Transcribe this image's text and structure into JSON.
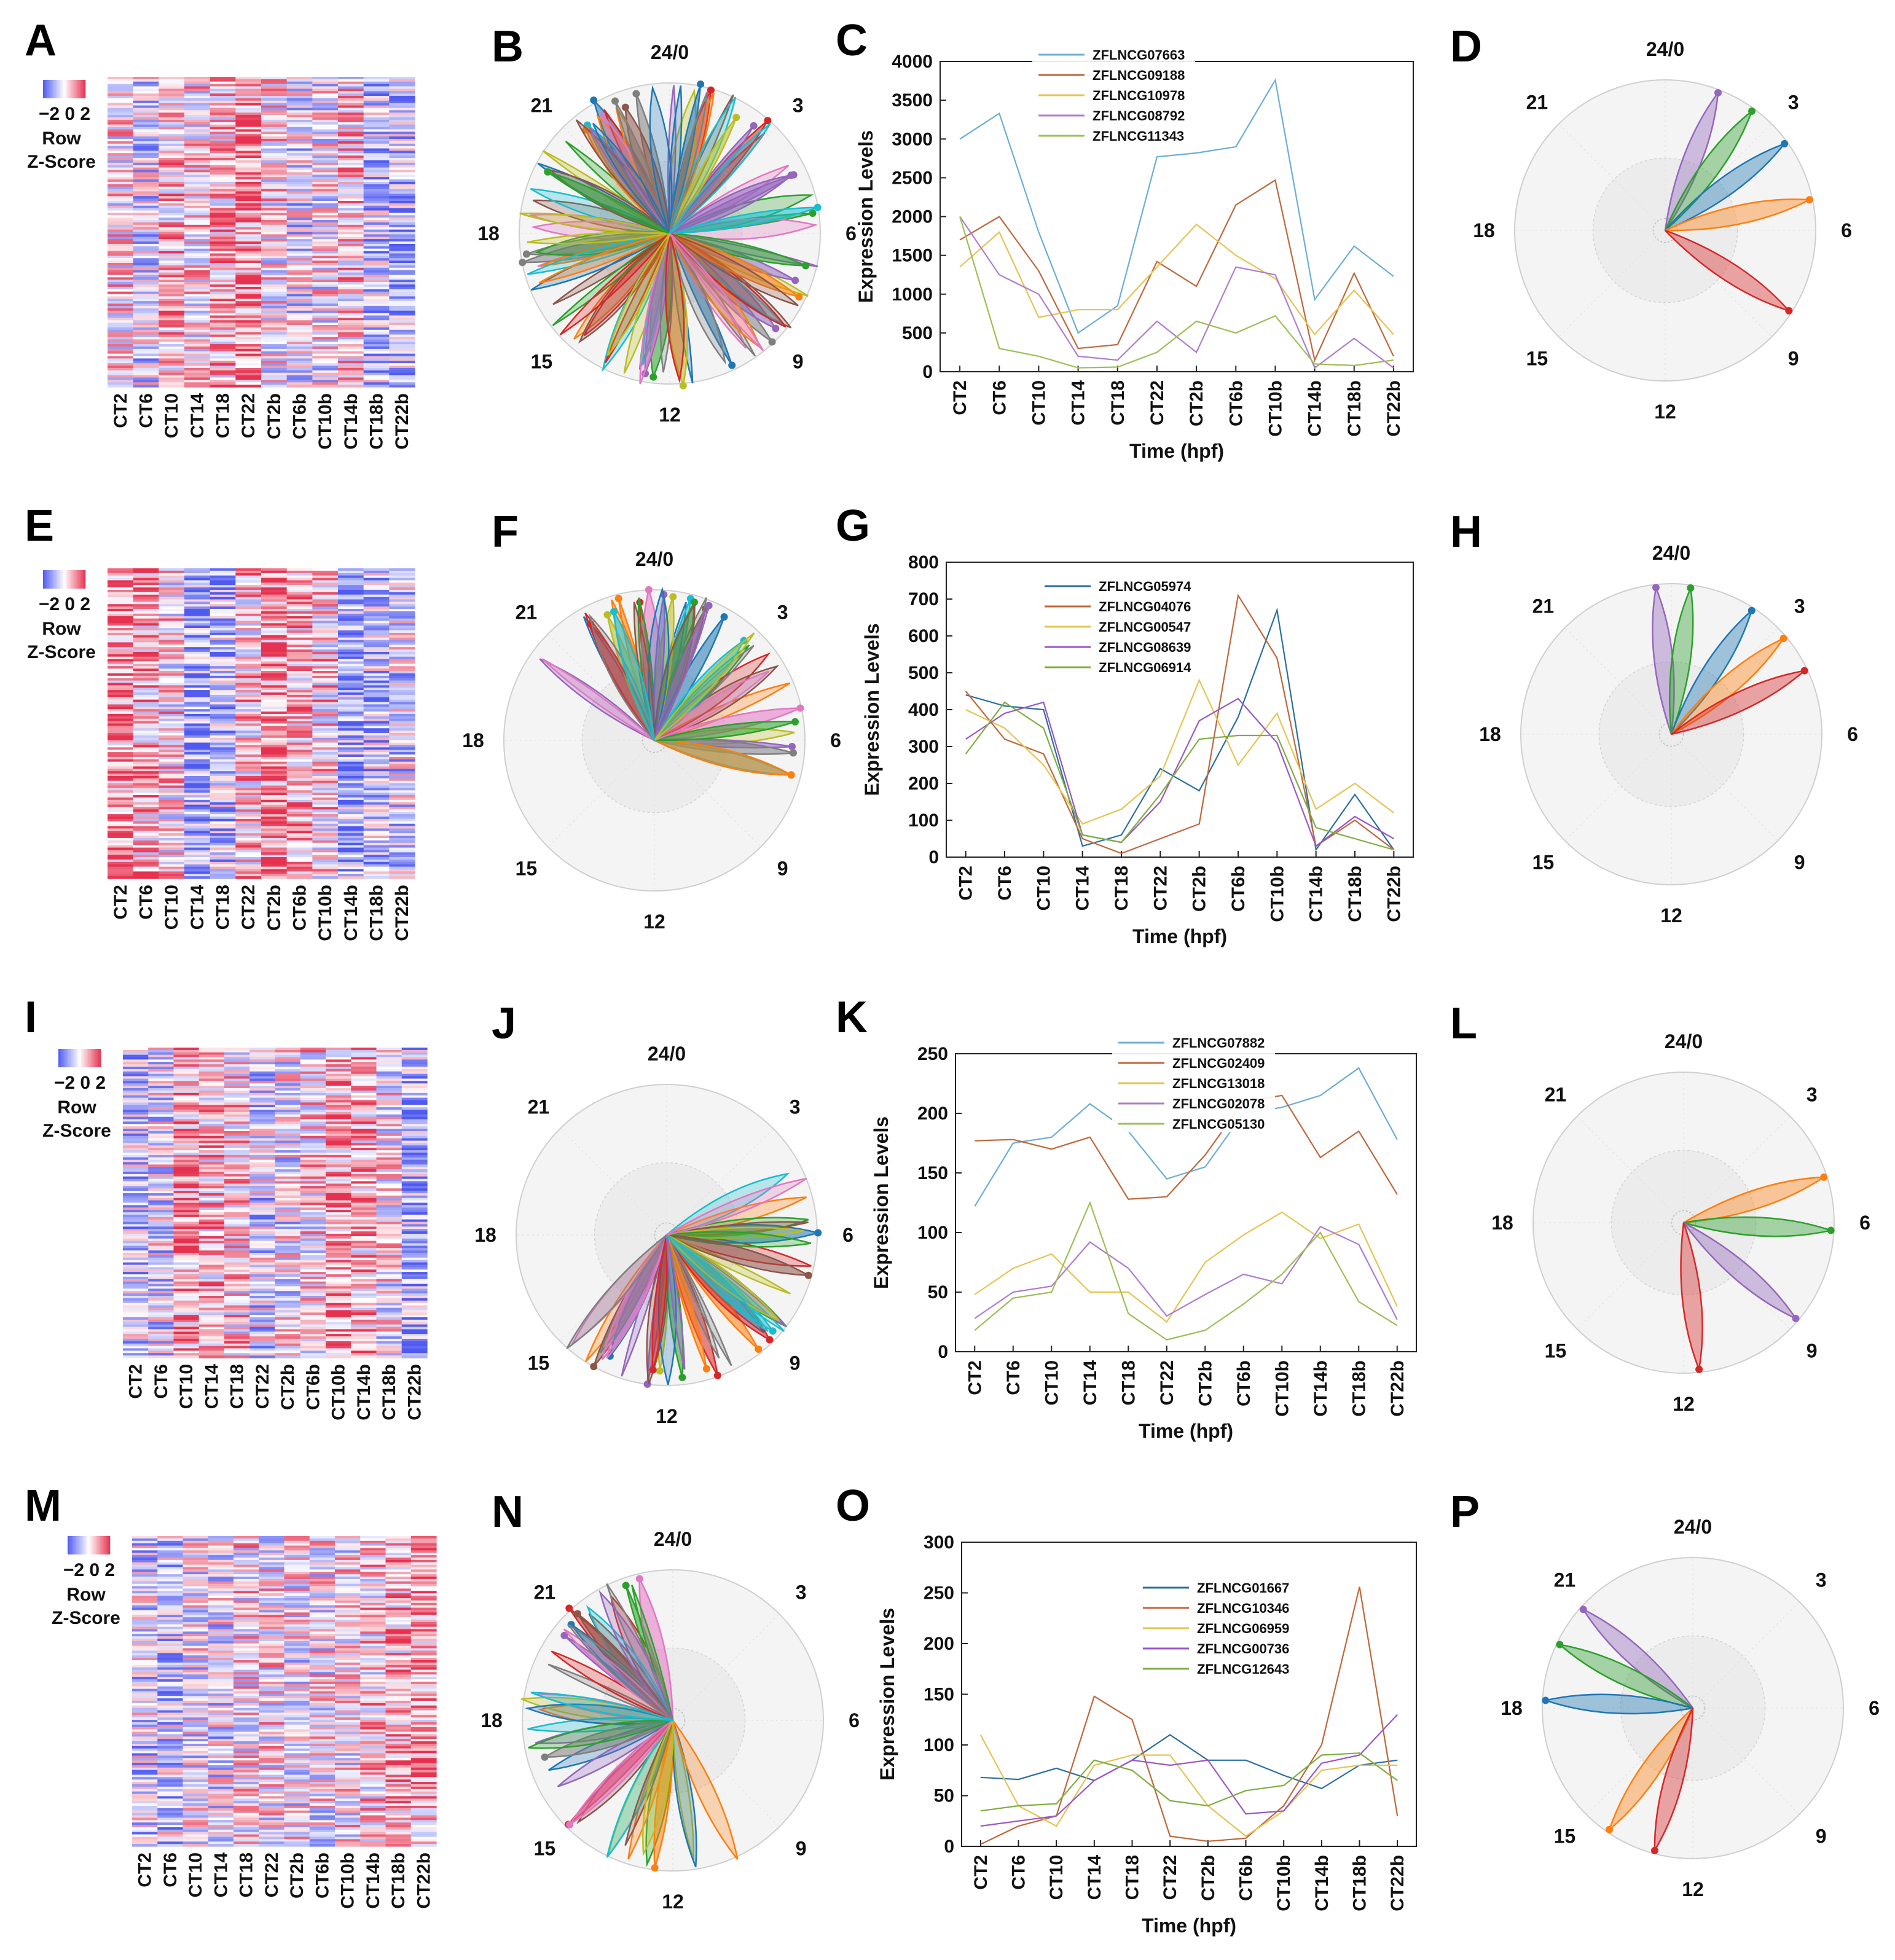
{
  "palette": [
    "#1f77b4",
    "#ff7f0e",
    "#2ca02c",
    "#d62728",
    "#9467bd",
    "#8c564b",
    "#e377c2",
    "#7f7f7f",
    "#bcbd22",
    "#17becf"
  ],
  "line_colors": {
    "light": [
      "#6baed6",
      "#c0673a",
      "#e5c452",
      "#b07ccc",
      "#9cbf55"
    ],
    "dark": [
      "#2a6f9e",
      "#c0673a",
      "#e5c452",
      "#9a57c7",
      "#7fae3f"
    ]
  },
  "clock_labels": [
    "24/0",
    "3",
    "6",
    "9",
    "12",
    "15",
    "18",
    "21"
  ],
  "colorbar": {
    "ticks": "−2 0 2",
    "title1": "Row",
    "title2": "Z-Score"
  },
  "rows": [
    {
      "heatmap": {
        "letter": "A",
        "pattern": "a"
      },
      "rose": {
        "letter": "B",
        "type": "rose",
        "mode": "many",
        "spread": 360,
        "center_hour": 12
      },
      "line": {
        "letter": "C",
        "chart_data": {
          "type": "line",
          "categories": [
            "CT2",
            "CT6",
            "CT10",
            "CT14",
            "CT18",
            "CT22",
            "CT2b",
            "CT6b",
            "CT10b",
            "CT14b",
            "CT18b",
            "CT22b"
          ],
          "xlabel": "Time (hpf)",
          "ylabel": "Expression Levels",
          "ylim": [
            0,
            4000
          ],
          "yticks": [
            0,
            500,
            1000,
            1500,
            2000,
            2500,
            3000,
            3500,
            4000
          ],
          "legend_position": "top",
          "series": [
            {
              "name": "ZFLNCG07663",
              "values": [
                3000,
                3330,
                1800,
                500,
                850,
                2770,
                2820,
                2900,
                3760,
                930,
                1620,
                1230
              ]
            },
            {
              "name": "ZFLNCG09188",
              "values": [
                1700,
                2000,
                1300,
                300,
                350,
                1420,
                1100,
                2150,
                2470,
                150,
                1270,
                200
              ]
            },
            {
              "name": "ZFLNCG10978",
              "values": [
                1350,
                1800,
                700,
                800,
                800,
                1350,
                1900,
                1500,
                1200,
                480,
                1050,
                480
              ]
            },
            {
              "name": "ZFLNCG08792",
              "values": [
                2000,
                1250,
                1000,
                200,
                150,
                650,
                250,
                1350,
                1250,
                50,
                430,
                50
              ]
            },
            {
              "name": "ZFLNCG11343",
              "values": [
                2000,
                300,
                200,
                50,
                60,
                250,
                650,
                500,
                720,
                100,
                80,
                150
              ]
            }
          ]
        }
      },
      "top": {
        "letter": "D",
        "type": "rose",
        "petal_hours": [
          1.4,
          2.4,
          3.6,
          5.2,
          8.2
        ]
      }
    },
    {
      "heatmap": {
        "letter": "E",
        "pattern": "e"
      },
      "rose": {
        "letter": "F",
        "type": "rose",
        "mode": "many",
        "spread": 165,
        "center_hour": 1.5
      },
      "line": {
        "letter": "G",
        "chart_data": {
          "type": "line",
          "categories": [
            "CT2",
            "CT6",
            "CT10",
            "CT14",
            "CT18",
            "CT22",
            "CT2b",
            "CT6b",
            "CT10b",
            "CT14b",
            "CT18b",
            "CT22b"
          ],
          "xlabel": "Time (hpf)",
          "ylabel": "Expression Levels",
          "ylim": [
            0,
            800
          ],
          "yticks": [
            0,
            100,
            200,
            300,
            400,
            500,
            600,
            700,
            800
          ],
          "legend_position": "top",
          "series": [
            {
              "name": "ZFLNCG05974",
              "values": [
                440,
                410,
                400,
                30,
                60,
                240,
                180,
                380,
                670,
                20,
                170,
                20
              ]
            },
            {
              "name": "ZFLNCG04076",
              "values": [
                450,
                320,
                280,
                50,
                10,
                50,
                90,
                710,
                540,
                30,
                100,
                20
              ]
            },
            {
              "name": "ZFLNCG00547",
              "values": [
                400,
                350,
                250,
                90,
                130,
                220,
                480,
                250,
                390,
                130,
                200,
                120
              ]
            },
            {
              "name": "ZFLNCG08639",
              "values": [
                320,
                390,
                420,
                60,
                40,
                150,
                370,
                430,
                310,
                30,
                110,
                50
              ]
            },
            {
              "name": "ZFLNCG06914",
              "values": [
                280,
                420,
                350,
                60,
                40,
                170,
                320,
                330,
                330,
                80,
                50,
                20
              ]
            }
          ]
        }
      },
      "top": {
        "letter": "H",
        "type": "rose",
        "petal_hours": [
          23.6,
          0.5,
          2.2,
          3.3,
          4.3
        ]
      }
    },
    {
      "heatmap": {
        "letter": "I",
        "pattern": "i"
      },
      "rose": {
        "letter": "J",
        "type": "rose",
        "mode": "many",
        "spread": 160,
        "center_hour": 9.5
      },
      "line": {
        "letter": "K",
        "chart_data": {
          "type": "line",
          "categories": [
            "CT2",
            "CT6",
            "CT10",
            "CT14",
            "CT18",
            "CT22",
            "CT2b",
            "CT6b",
            "CT10b",
            "CT14b",
            "CT18b",
            "CT22b"
          ],
          "xlabel": "Time (hpf)",
          "ylabel": "Expression Levels",
          "ylim": [
            0,
            250
          ],
          "yticks": [
            0,
            50,
            100,
            150,
            200,
            250
          ],
          "legend_position": "top",
          "series": [
            {
              "name": "ZFLNCG07882",
              "values": [
                122,
                175,
                180,
                208,
                185,
                145,
                155,
                200,
                205,
                215,
                238,
                178
              ]
            },
            {
              "name": "ZFLNCG02409",
              "values": [
                177,
                178,
                170,
                180,
                128,
                130,
                165,
                210,
                215,
                163,
                185,
                132
              ]
            },
            {
              "name": "ZFLNCG13018",
              "values": [
                48,
                70,
                82,
                50,
                50,
                25,
                75,
                98,
                117,
                95,
                107,
                38
              ]
            },
            {
              "name": "ZFLNCG02078",
              "values": [
                28,
                50,
                55,
                92,
                70,
                30,
                48,
                65,
                57,
                105,
                90,
                27
              ]
            },
            {
              "name": "ZFLNCG05130",
              "values": [
                18,
                45,
                50,
                125,
                32,
                10,
                18,
                40,
                65,
                100,
                42,
                22
              ]
            }
          ]
        }
      },
      "top": {
        "letter": "L",
        "type": "rose",
        "petal_hours": [
          4.8,
          6.2,
          8.7,
          11.6
        ]
      }
    },
    {
      "heatmap": {
        "letter": "M",
        "pattern": "m"
      },
      "rose": {
        "letter": "N",
        "type": "rose",
        "mode": "many",
        "spread": 200,
        "center_hour": 17
      },
      "line": {
        "letter": "O",
        "chart_data": {
          "type": "line",
          "categories": [
            "CT2",
            "CT6",
            "CT10",
            "CT14",
            "CT18",
            "CT22",
            "CT2b",
            "CT6b",
            "CT10b",
            "CT14b",
            "CT18b",
            "CT22b"
          ],
          "xlabel": "Time (hpf)",
          "ylabel": "Expression Levels",
          "ylim": [
            0,
            300
          ],
          "yticks": [
            0,
            50,
            100,
            150,
            200,
            250,
            300
          ],
          "legend_position": "top",
          "series": [
            {
              "name": "ZFLNCG01667",
              "values": [
                68,
                66,
                77,
                65,
                85,
                110,
                85,
                85,
                70,
                57,
                80,
                85
              ]
            },
            {
              "name": "ZFLNCG10346",
              "values": [
                2,
                20,
                30,
                148,
                125,
                10,
                5,
                8,
                40,
                100,
                256,
                30
              ]
            },
            {
              "name": "ZFLNCG06959",
              "values": [
                110,
                40,
                20,
                80,
                90,
                90,
                40,
                10,
                35,
                75,
                80,
                80
              ]
            },
            {
              "name": "ZFLNCG00736",
              "values": [
                20,
                25,
                30,
                65,
                85,
                80,
                85,
                32,
                35,
                82,
                90,
                130
              ]
            },
            {
              "name": "ZFLNCG12643",
              "values": [
                35,
                40,
                42,
                85,
                75,
                45,
                40,
                55,
                60,
                90,
                92,
                65
              ]
            }
          ]
        }
      },
      "top": {
        "letter": "P",
        "type": "rose",
        "petal_hours": [
          20.8,
          19.7,
          18.2,
          14.3,
          13.0
        ]
      }
    }
  ]
}
